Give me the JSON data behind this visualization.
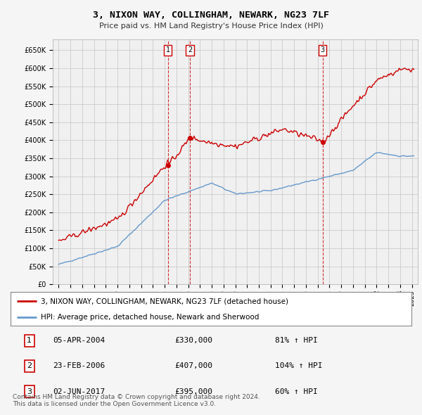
{
  "title": "3, NIXON WAY, COLLINGHAM, NEWARK, NG23 7LF",
  "subtitle": "Price paid vs. HM Land Registry's House Price Index (HPI)",
  "ylabel_ticks": [
    "£0",
    "£50K",
    "£100K",
    "£150K",
    "£200K",
    "£250K",
    "£300K",
    "£350K",
    "£400K",
    "£450K",
    "£500K",
    "£550K",
    "£600K",
    "£650K"
  ],
  "ytick_values": [
    0,
    50000,
    100000,
    150000,
    200000,
    250000,
    300000,
    350000,
    400000,
    450000,
    500000,
    550000,
    600000,
    650000
  ],
  "xlim_start": 1994.5,
  "xlim_end": 2025.5,
  "ylim": [
    0,
    680000
  ],
  "sale_dates": [
    2004.27,
    2006.15,
    2017.42
  ],
  "sale_prices": [
    330000,
    407000,
    395000
  ],
  "sale_labels": [
    "1",
    "2",
    "3"
  ],
  "legend_entries": [
    "3, NIXON WAY, COLLINGHAM, NEWARK, NG23 7LF (detached house)",
    "HPI: Average price, detached house, Newark and Sherwood"
  ],
  "table_data": [
    [
      "1",
      "05-APR-2004",
      "£330,000",
      "81% ↑ HPI"
    ],
    [
      "2",
      "23-FEB-2006",
      "£407,000",
      "104% ↑ HPI"
    ],
    [
      "3",
      "02-JUN-2017",
      "£395,000",
      "60% ↑ HPI"
    ]
  ],
  "footnote": "Contains HM Land Registry data © Crown copyright and database right 2024.\nThis data is licensed under the Open Government Licence v3.0.",
  "red_color": "#cc0000",
  "blue_color": "#6699cc",
  "background_color": "#f5f5f5",
  "grid_color": "#cccccc"
}
